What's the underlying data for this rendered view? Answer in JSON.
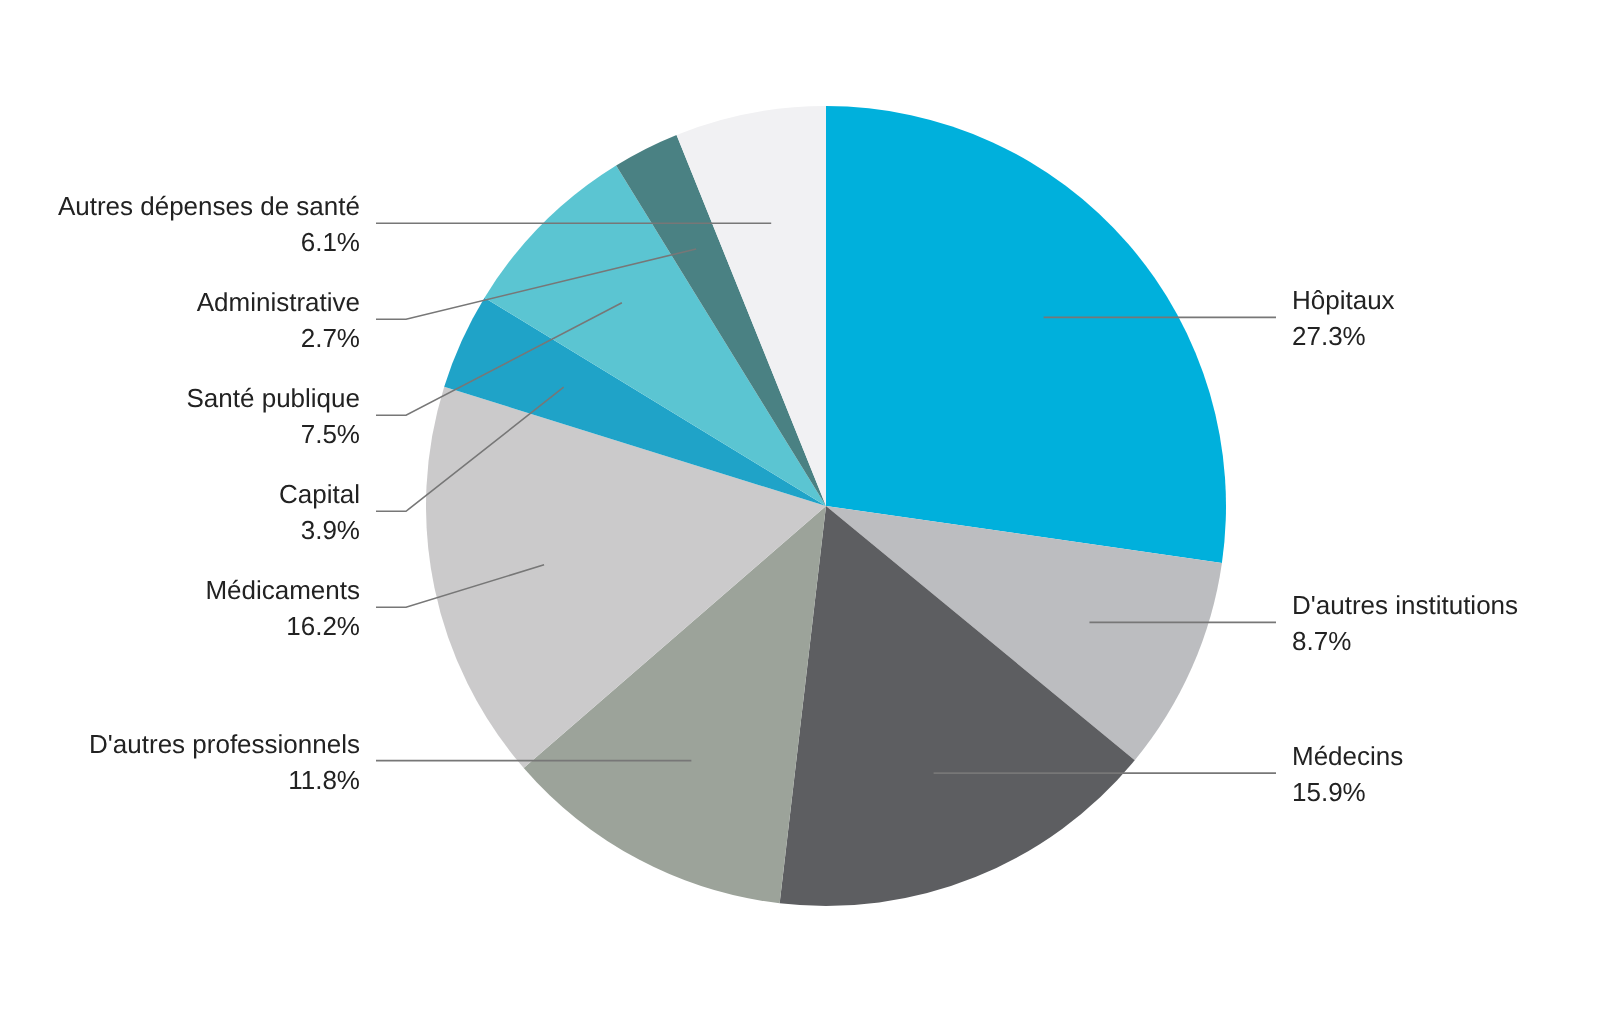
{
  "chart_data": {
    "type": "pie",
    "categories": [
      "Hôpitaux",
      "D'autres institutions",
      "Médecins",
      "D'autres professionnels",
      "Médicaments",
      "Capital",
      "Santé publique",
      "Administrative",
      "Autres dépenses de santé"
    ],
    "values": [
      27.3,
      8.7,
      15.9,
      11.8,
      16.2,
      3.9,
      7.5,
      2.7,
      6.1
    ],
    "value_labels": [
      "27.3%",
      "8.7%",
      "15.9%",
      "11.8%",
      "16.2%",
      "3.9%",
      "7.5%",
      "2.7%",
      "6.1%"
    ],
    "colors": [
      "#00b0dc",
      "#bcbdc0",
      "#5d5e61",
      "#9ca39a",
      "#cbcacb",
      "#1fa3c8",
      "#5bc5d2",
      "#4a8183",
      "#f1f1f3"
    ]
  }
}
